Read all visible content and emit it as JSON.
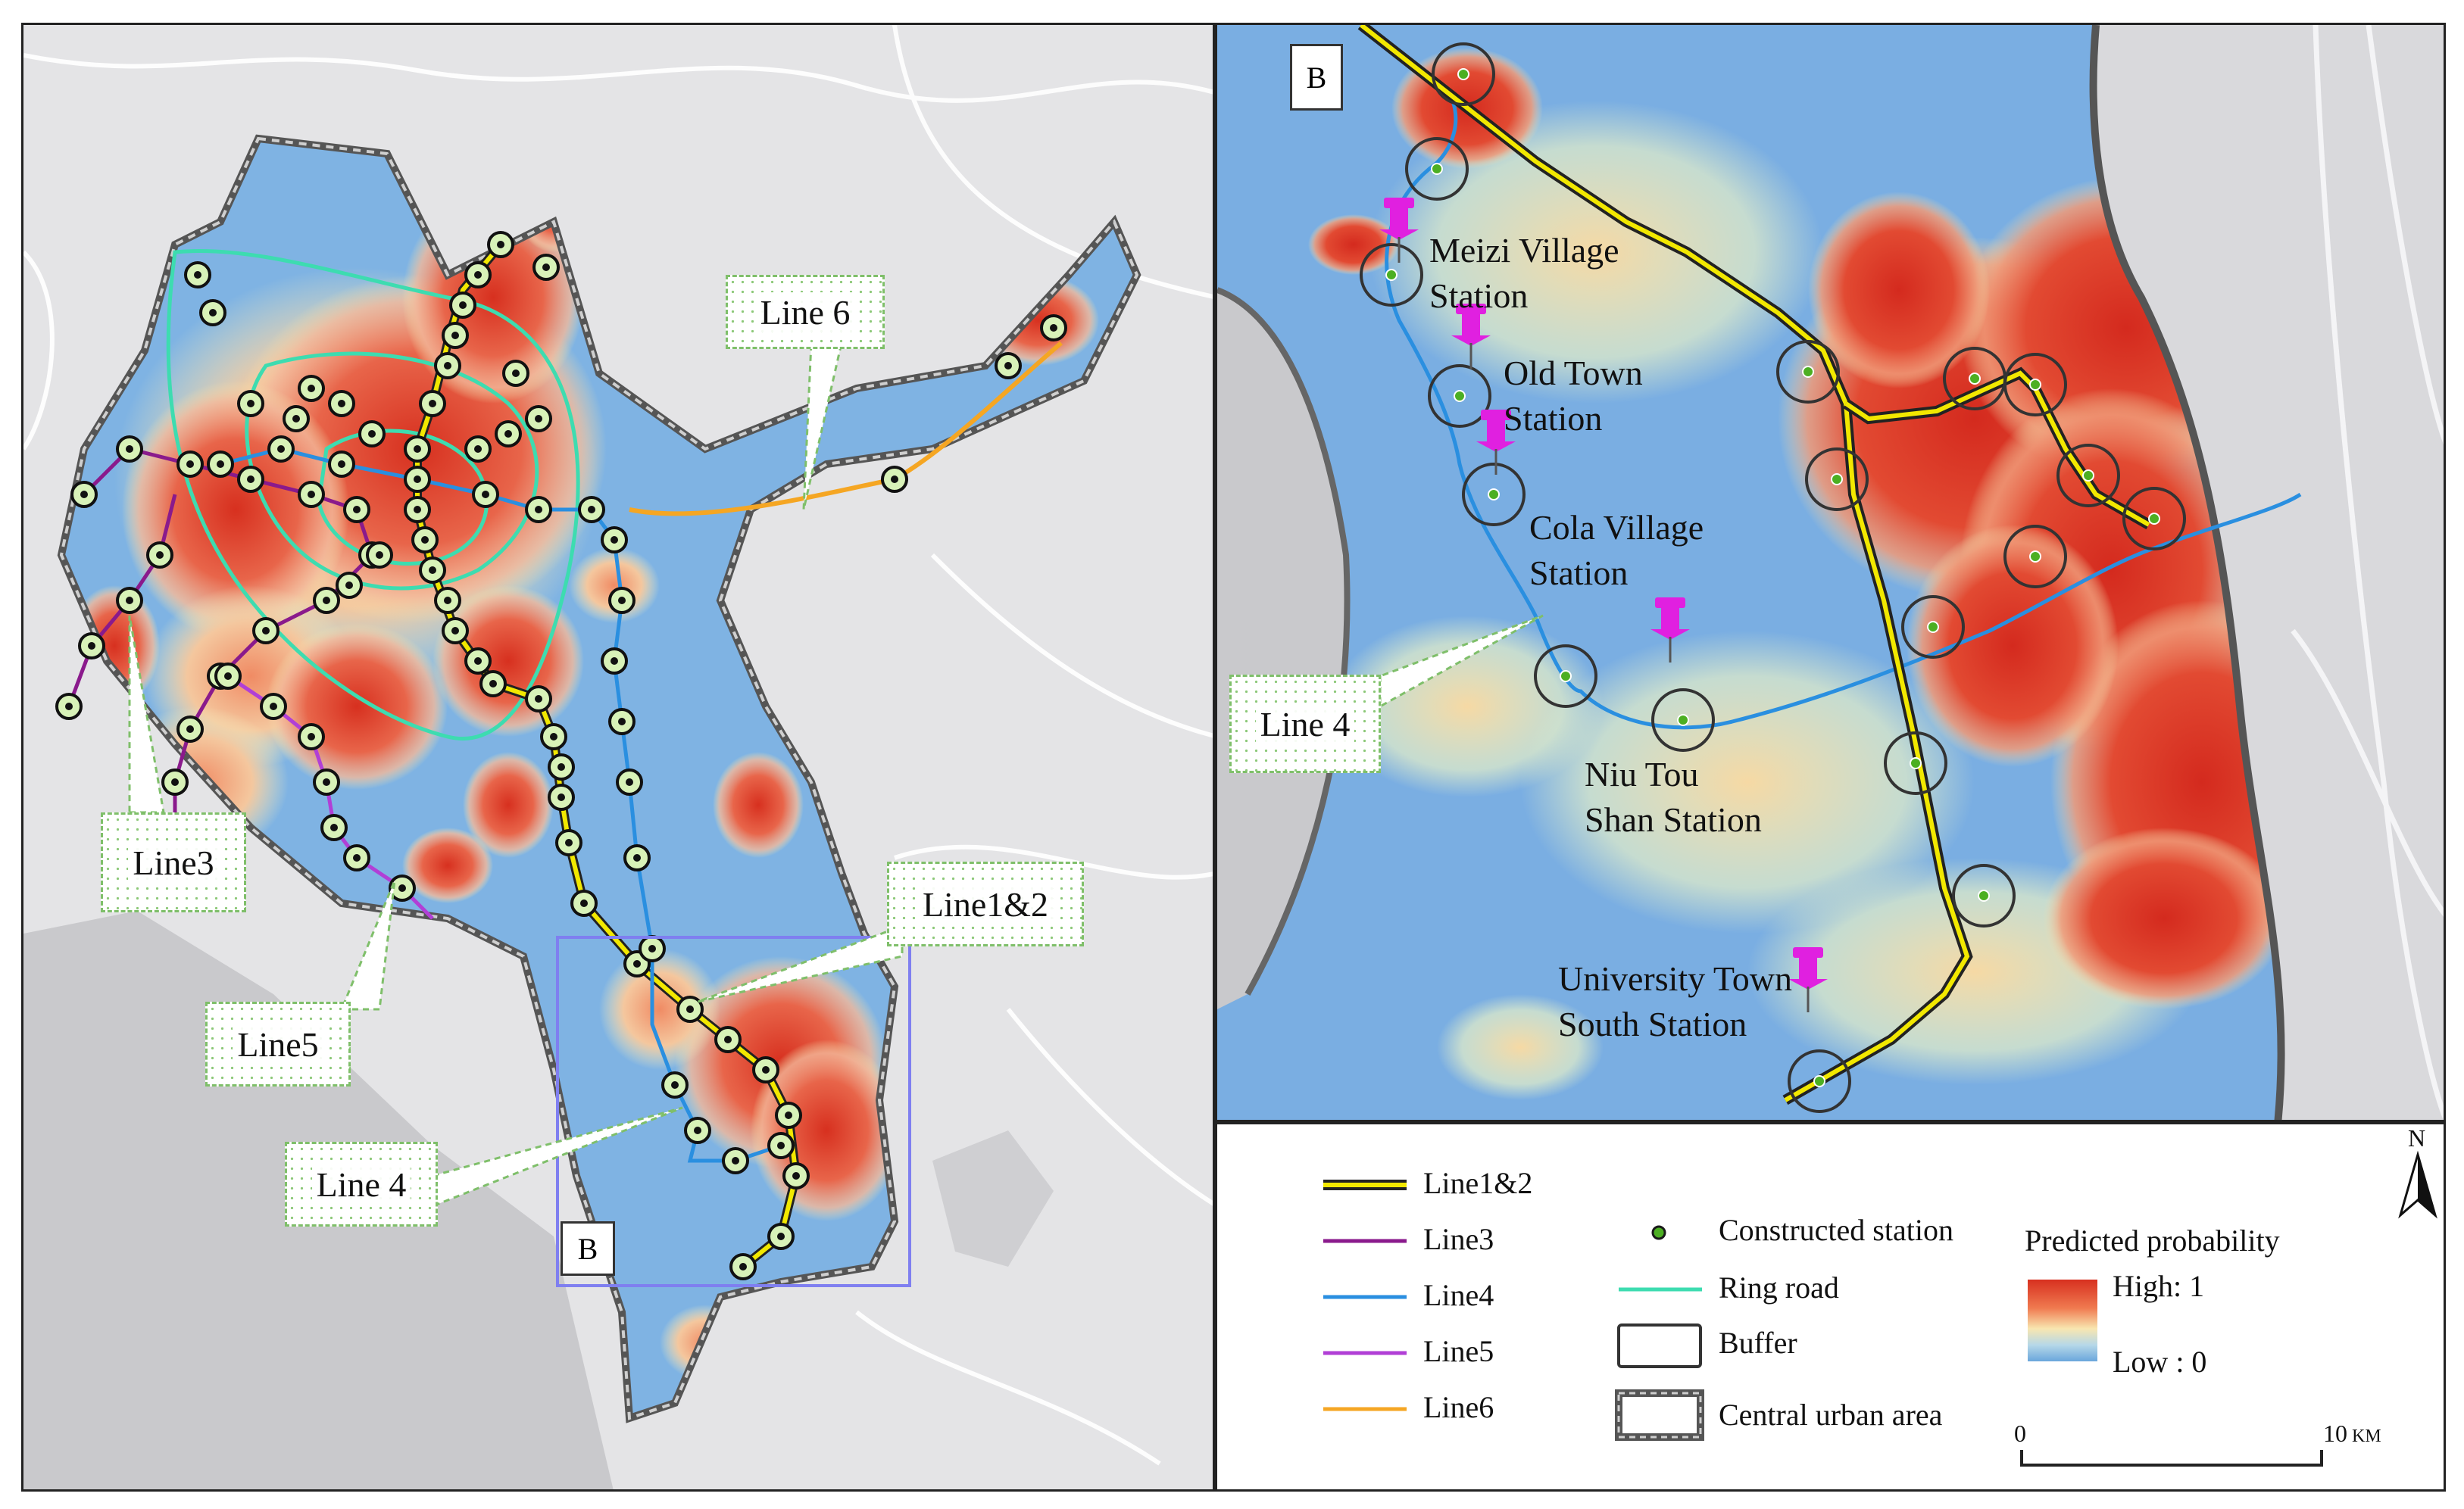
{
  "panel_a": {
    "badge": "B",
    "callouts": {
      "line6": "Line 6",
      "line3": "Line3",
      "line5": "Line5",
      "line12": "Line1&2",
      "line4": "Line 4"
    }
  },
  "panel_b": {
    "badge": "B",
    "line4_callout": "Line 4",
    "stations": [
      {
        "l1": "Meizi Village",
        "l2": "Station"
      },
      {
        "l1": "Old Town",
        "l2": "Station"
      },
      {
        "l1": "Cola Village",
        "l2": "Station"
      },
      {
        "l1": "Niu Tou",
        "l2": "Shan Station"
      },
      {
        "l1": "University Town",
        "l2": "South Station"
      }
    ]
  },
  "legend": {
    "lines": [
      {
        "label": "Line1&2",
        "color": "#f2e800"
      },
      {
        "label": "Line3",
        "color": "#8a1a8c"
      },
      {
        "label": "Line4",
        "color": "#2a8fe0"
      },
      {
        "label": "Line5",
        "color": "#b13fd6"
      },
      {
        "label": "Line6",
        "color": "#f5a623"
      }
    ],
    "symbols": {
      "station": "Constructed station",
      "ring": "Ring road",
      "buffer": "Buffer",
      "urban": "Central urban area"
    },
    "probability": {
      "title": "Predicted probability",
      "high": "High: 1",
      "low": "Low : 0"
    },
    "scale": {
      "start": "0",
      "end": "10",
      "unit": "KM"
    },
    "north": "N"
  },
  "colors": {
    "ring_road": "#3ddcb0",
    "station_fill": "#4caf22",
    "pushpin": "#e020e0",
    "high": "#d7301f",
    "low": "#6aa6dc"
  }
}
